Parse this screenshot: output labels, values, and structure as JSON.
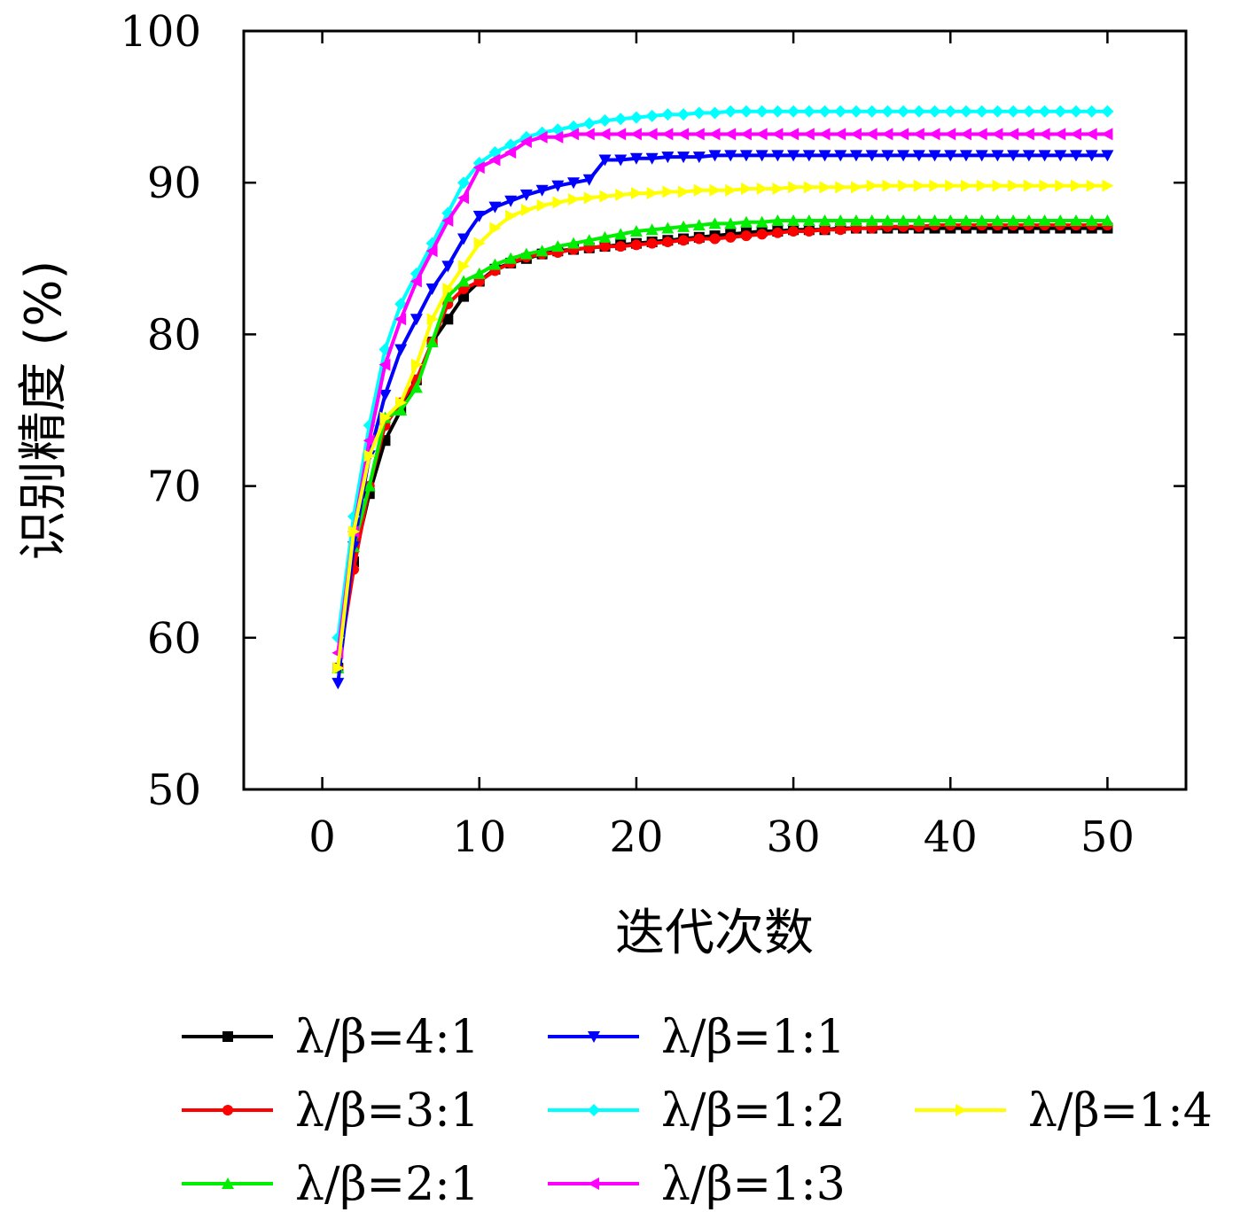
{
  "chart_data": {
    "type": "line",
    "title": "",
    "xlabel": "迭代次数",
    "ylabel": "识别精度 (%)",
    "xlim": [
      -5,
      55
    ],
    "ylim": [
      50,
      100
    ],
    "xticks": [
      "0",
      "10",
      "20",
      "30",
      "40",
      "50"
    ],
    "yticks": [
      "50",
      "60",
      "70",
      "80",
      "90",
      "100"
    ],
    "grid": false,
    "legend_position": "below plot",
    "x": [
      1,
      2,
      3,
      4,
      5,
      6,
      7,
      8,
      9,
      10,
      11,
      12,
      13,
      14,
      15,
      16,
      17,
      18,
      19,
      20,
      21,
      22,
      23,
      24,
      25,
      26,
      27,
      28,
      29,
      30,
      31,
      32,
      33,
      34,
      35,
      36,
      37,
      38,
      39,
      40,
      41,
      42,
      43,
      44,
      45,
      46,
      47,
      48,
      49,
      50
    ],
    "series": [
      {
        "name": "λ/β=4:1",
        "color": "#000000",
        "marker": "square",
        "values": [
          58,
          65,
          69.5,
          73,
          75,
          77,
          79.5,
          81,
          82.5,
          83.5,
          84.3,
          84.7,
          85,
          85.3,
          85.5,
          85.6,
          85.7,
          85.8,
          85.9,
          86,
          86.1,
          86.2,
          86.3,
          86.4,
          86.5,
          86.6,
          86.7,
          86.8,
          86.8,
          86.9,
          86.9,
          86.9,
          87,
          87,
          87,
          87,
          87,
          87,
          87,
          87,
          87,
          87,
          87,
          87,
          87,
          87,
          87,
          87,
          87,
          87
        ]
      },
      {
        "name": "λ/β=3:1",
        "color": "#ff0000",
        "marker": "circle",
        "values": [
          58,
          64.5,
          70,
          74,
          75.5,
          77,
          79.5,
          82,
          83,
          83.5,
          84.2,
          84.7,
          85.1,
          85.3,
          85.4,
          85.6,
          85.7,
          85.8,
          85.8,
          85.9,
          86,
          86.1,
          86.2,
          86.3,
          86.3,
          86.4,
          86.5,
          86.6,
          86.7,
          86.8,
          86.8,
          86.9,
          86.9,
          87,
          87,
          87.1,
          87.1,
          87.1,
          87.2,
          87.2,
          87.2,
          87.2,
          87.2,
          87.2,
          87.2,
          87.2,
          87.2,
          87.2,
          87.2,
          87.2
        ]
      },
      {
        "name": "λ/β=2:1",
        "color": "#00ee00",
        "marker": "triangle-up",
        "values": [
          58,
          66,
          70,
          74.5,
          75,
          76.5,
          79.5,
          82.5,
          83.5,
          84,
          84.6,
          85,
          85.3,
          85.5,
          85.8,
          86,
          86.2,
          86.4,
          86.6,
          86.8,
          86.9,
          87,
          87.1,
          87.2,
          87.3,
          87.3,
          87.4,
          87.4,
          87.5,
          87.5,
          87.5,
          87.5,
          87.5,
          87.5,
          87.5,
          87.5,
          87.5,
          87.5,
          87.5,
          87.5,
          87.5,
          87.5,
          87.5,
          87.5,
          87.5,
          87.5,
          87.5,
          87.5,
          87.5,
          87.5
        ]
      },
      {
        "name": "λ/β=1:1",
        "color": "#0000ff",
        "marker": "triangle-down",
        "values": [
          57,
          66,
          72,
          76,
          79,
          81,
          83,
          84.5,
          86.3,
          87.8,
          88.4,
          88.8,
          89.2,
          89.5,
          89.8,
          90,
          90.2,
          91.5,
          91.5,
          91.6,
          91.6,
          91.7,
          91.7,
          91.7,
          91.8,
          91.8,
          91.8,
          91.8,
          91.8,
          91.8,
          91.8,
          91.8,
          91.8,
          91.8,
          91.8,
          91.8,
          91.8,
          91.8,
          91.8,
          91.8,
          91.8,
          91.8,
          91.8,
          91.8,
          91.8,
          91.8,
          91.8,
          91.8,
          91.8,
          91.8
        ]
      },
      {
        "name": "λ/β=1:2",
        "color": "#00ffff",
        "marker": "diamond",
        "values": [
          60,
          68,
          74,
          79,
          82,
          84,
          86,
          88,
          90,
          91.3,
          92,
          92.5,
          93,
          93.3,
          93.5,
          93.7,
          93.9,
          94.1,
          94.2,
          94.3,
          94.4,
          94.5,
          94.5,
          94.6,
          94.6,
          94.7,
          94.7,
          94.7,
          94.7,
          94.7,
          94.7,
          94.7,
          94.7,
          94.7,
          94.7,
          94.7,
          94.7,
          94.7,
          94.7,
          94.7,
          94.7,
          94.7,
          94.7,
          94.7,
          94.7,
          94.7,
          94.7,
          94.7,
          94.7,
          94.7
        ]
      },
      {
        "name": "λ/β=1:3",
        "color": "#ff00ff",
        "marker": "triangle-left",
        "values": [
          59,
          67,
          73,
          78,
          81,
          83.5,
          85.5,
          87.5,
          89,
          91,
          91.5,
          92,
          92.7,
          93,
          93,
          93.2,
          93.2,
          93.2,
          93.2,
          93.2,
          93.2,
          93.2,
          93.2,
          93.2,
          93.2,
          93.2,
          93.2,
          93.2,
          93.2,
          93.2,
          93.2,
          93.2,
          93.2,
          93.2,
          93.2,
          93.2,
          93.2,
          93.2,
          93.2,
          93.2,
          93.2,
          93.2,
          93.2,
          93.2,
          93.2,
          93.2,
          93.2,
          93.2,
          93.2,
          93.2
        ]
      },
      {
        "name": "λ/β=1:4",
        "color": "#ffff00",
        "marker": "triangle-right",
        "values": [
          58,
          67,
          72,
          74.5,
          75.5,
          78,
          81,
          83,
          84.5,
          86,
          87,
          87.8,
          88.2,
          88.5,
          88.7,
          88.9,
          89,
          89.1,
          89.2,
          89.3,
          89.3,
          89.4,
          89.4,
          89.5,
          89.5,
          89.5,
          89.6,
          89.6,
          89.6,
          89.7,
          89.7,
          89.7,
          89.7,
          89.7,
          89.8,
          89.8,
          89.8,
          89.8,
          89.8,
          89.8,
          89.8,
          89.8,
          89.8,
          89.8,
          89.8,
          89.8,
          89.8,
          89.8,
          89.8,
          89.8
        ]
      }
    ]
  }
}
